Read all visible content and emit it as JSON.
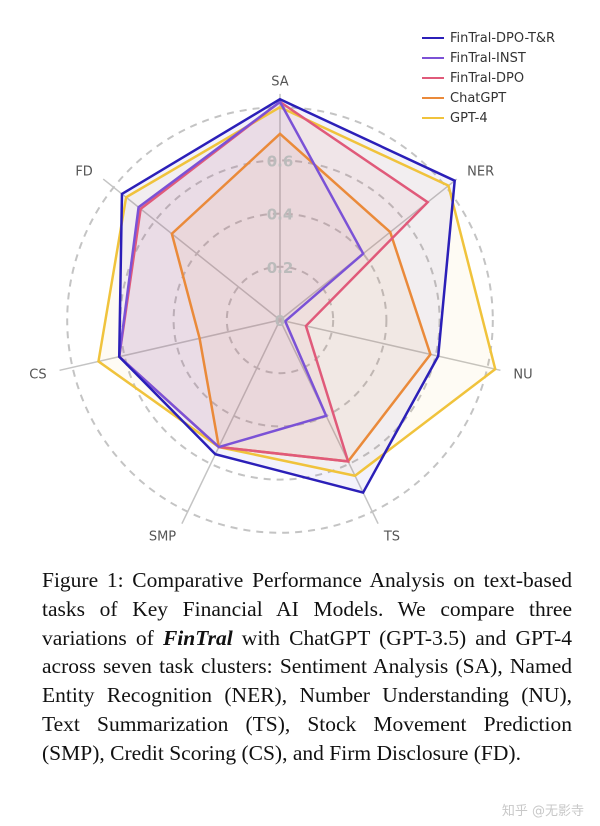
{
  "chart_data": {
    "type": "radar",
    "title": "",
    "categories": [
      "SA",
      "NER",
      "NU",
      "TS",
      "SMP",
      "CS",
      "FD"
    ],
    "radial_ticks": [
      "0",
      "0.2",
      "0.4",
      "0.6"
    ],
    "radial_range": [
      0,
      0.8
    ],
    "grid": "dashed concentric circles at 0.2, 0.4, 0.6, 0.8",
    "legend_position": "upper right",
    "series": [
      {
        "name": "FinTral-DPO-T&R",
        "color": "#2b1fb8",
        "values": [
          0.83,
          0.84,
          0.61,
          0.72,
          0.56,
          0.62,
          0.76
        ]
      },
      {
        "name": "FinTral-INST",
        "color": "#7b52d6",
        "values": [
          0.82,
          0.4,
          0.02,
          0.4,
          0.53,
          0.62,
          0.68
        ]
      },
      {
        "name": "FinTral-DPO",
        "color": "#e05a7a",
        "values": [
          0.82,
          0.71,
          0.1,
          0.59,
          0.53,
          0.62,
          0.67
        ]
      },
      {
        "name": "ChatGPT",
        "color": "#ea8a3a",
        "values": [
          0.7,
          0.53,
          0.58,
          0.59,
          0.53,
          0.31,
          0.52
        ]
      },
      {
        "name": "GPT-4",
        "color": "#f0c33c",
        "values": [
          0.8,
          0.81,
          0.83,
          0.65,
          0.53,
          0.7,
          0.74
        ]
      }
    ]
  },
  "legend": {
    "items": [
      {
        "label": "FinTral-DPO-T&R",
        "color": "#2b1fb8"
      },
      {
        "label": "FinTral-INST",
        "color": "#7b52d6"
      },
      {
        "label": "FinTral-DPO",
        "color": "#e05a7a"
      },
      {
        "label": "ChatGPT",
        "color": "#ea8a3a"
      },
      {
        "label": "GPT-4",
        "color": "#f0c33c"
      }
    ]
  },
  "caption": {
    "prefix": "Figure 1: Comparative Performance Analysis on text-based tasks of Key Financial AI Models. We compare three variations of ",
    "emphasis": "FinTral",
    "suffix": " with ChatGPT (GPT-3.5) and GPT-4 across seven task clusters: Sentiment Analysis (SA), Named Entity Recognition (NER), Number Understanding (NU), Text Summarization (TS), Stock Movement Prediction (SMP), Credit Scoring (CS), and Firm Disclosure (FD)."
  },
  "watermark": "知乎 @无影寺"
}
